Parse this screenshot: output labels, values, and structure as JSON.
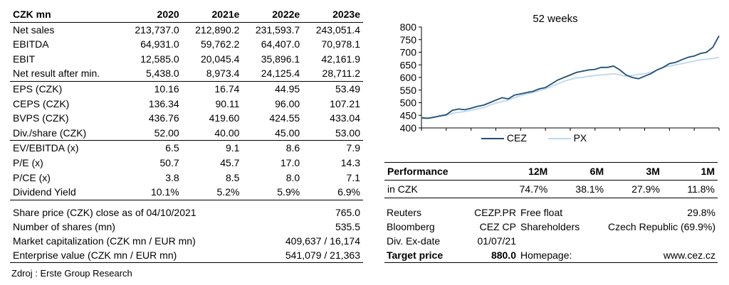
{
  "financials": {
    "header": [
      "CZK mn",
      "2020",
      "2021e",
      "2022e",
      "2023e"
    ],
    "rows": [
      {
        "label": "Net sales",
        "values": [
          "213,737.0",
          "212,890.2",
          "231,593.7",
          "243,051.4"
        ]
      },
      {
        "label": "EBITDA",
        "values": [
          "64,931.0",
          "59,762.2",
          "64,407.0",
          "70,978.1"
        ]
      },
      {
        "label": "EBIT",
        "values": [
          "12,585.0",
          "20,045.4",
          "35,896.1",
          "42,161.9"
        ]
      },
      {
        "label": "Net result after min.",
        "values": [
          "5,438.0",
          "8,973.4",
          "24,125.4",
          "28,711.2"
        ]
      },
      {
        "label": "EPS (CZK)",
        "values": [
          "10.16",
          "16.74",
          "44.95",
          "53.49"
        ]
      },
      {
        "label": "CEPS (CZK)",
        "values": [
          "136.34",
          "90.11",
          "96.00",
          "107.21"
        ]
      },
      {
        "label": "BVPS (CZK)",
        "values": [
          "436.76",
          "419.60",
          "424.55",
          "433.04"
        ]
      },
      {
        "label": "Div./share (CZK)",
        "values": [
          "52.00",
          "40.00",
          "45.00",
          "53.00"
        ]
      },
      {
        "label": "EV/EBITDA (x)",
        "values": [
          "6.5",
          "9.1",
          "8.6",
          "7.9"
        ]
      },
      {
        "label": "P/E (x)",
        "values": [
          "50.7",
          "45.7",
          "17.0",
          "14.3"
        ]
      },
      {
        "label": "P/CE (x)",
        "values": [
          "3.8",
          "8.5",
          "8.0",
          "7.1"
        ]
      },
      {
        "label": "Dividend Yield",
        "values": [
          "10.1%",
          "5.2%",
          "5.9%",
          "6.9%"
        ]
      }
    ]
  },
  "share_info": [
    {
      "label": "Share price (CZK) close as of 04/10/2021",
      "value": "765.0"
    },
    {
      "label": "Number of shares (mn)",
      "value": "535.5"
    },
    {
      "label": "Market capitalization (CZK mn / EUR mn)",
      "value": "409,637 / 16,174"
    },
    {
      "label": "Enterprise value (CZK mn / EUR mn)",
      "value": "541,079 / 21,363"
    }
  ],
  "chart_data": {
    "type": "line",
    "title": "52 weeks",
    "ylim": [
      400,
      800
    ],
    "yticks": [
      "800",
      "750",
      "700",
      "650",
      "600",
      "550",
      "500",
      "450",
      "400"
    ],
    "grid": false,
    "legend_position": "bottom",
    "series": [
      {
        "name": "CEZ",
        "color": "#1f4e79",
        "values": [
          440,
          438,
          442,
          448,
          452,
          470,
          475,
          472,
          478,
          485,
          490,
          500,
          510,
          520,
          515,
          530,
          535,
          540,
          545,
          555,
          560,
          575,
          590,
          600,
          610,
          620,
          625,
          630,
          632,
          640,
          640,
          645,
          630,
          610,
          600,
          595,
          605,
          615,
          630,
          640,
          655,
          660,
          670,
          680,
          685,
          695,
          700,
          720,
          765
        ]
      },
      {
        "name": "PX",
        "color": "#bdd7ee",
        "values": [
          442,
          440,
          444,
          446,
          450,
          458,
          462,
          465,
          470,
          475,
          480,
          490,
          498,
          505,
          510,
          520,
          528,
          535,
          540,
          548,
          555,
          565,
          575,
          585,
          592,
          598,
          600,
          605,
          608,
          610,
          612,
          615,
          610,
          605,
          608,
          612,
          615,
          620,
          630,
          640,
          645,
          650,
          655,
          660,
          665,
          670,
          672,
          675,
          680
        ]
      }
    ]
  },
  "performance": {
    "title": "Performance",
    "periods": [
      "12M",
      "6M",
      "3M",
      "1M"
    ],
    "row_label": "in CZK",
    "values": [
      "74.7%",
      "38.1%",
      "27.9%",
      "11.8%"
    ]
  },
  "company_info": [
    [
      "Reuters",
      "CEZP.PR",
      "Free float",
      "29.8%"
    ],
    [
      "Bloomberg",
      "CEZ CP",
      "Shareholders",
      "Czech Republic (69.9%)"
    ],
    [
      "Div. Ex-date",
      "01/07/21",
      "",
      ""
    ],
    [
      "Target price",
      "880.0",
      "Homepage:",
      "www.cez.cz"
    ]
  ],
  "source": "Zdroj : Erste Group Research"
}
